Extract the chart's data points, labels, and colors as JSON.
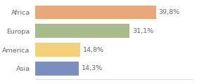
{
  "categories": [
    "Africa",
    "Europa",
    "America",
    "Asia"
  ],
  "values": [
    39.8,
    31.1,
    14.8,
    14.3
  ],
  "labels": [
    "39,8%",
    "31,1%",
    "14,8%",
    "14,3%"
  ],
  "bar_colors": [
    "#e8a87c",
    "#a8bb8a",
    "#f5d07a",
    "#7b8fbe"
  ],
  "background_color": "#ffffff",
  "xlim": [
    0,
    52
  ],
  "bar_height": 0.72,
  "label_fontsize": 6.8,
  "tick_fontsize": 6.8,
  "label_color": "#666666",
  "tick_color": "#666666",
  "bottom_spine_color": "#cccccc"
}
